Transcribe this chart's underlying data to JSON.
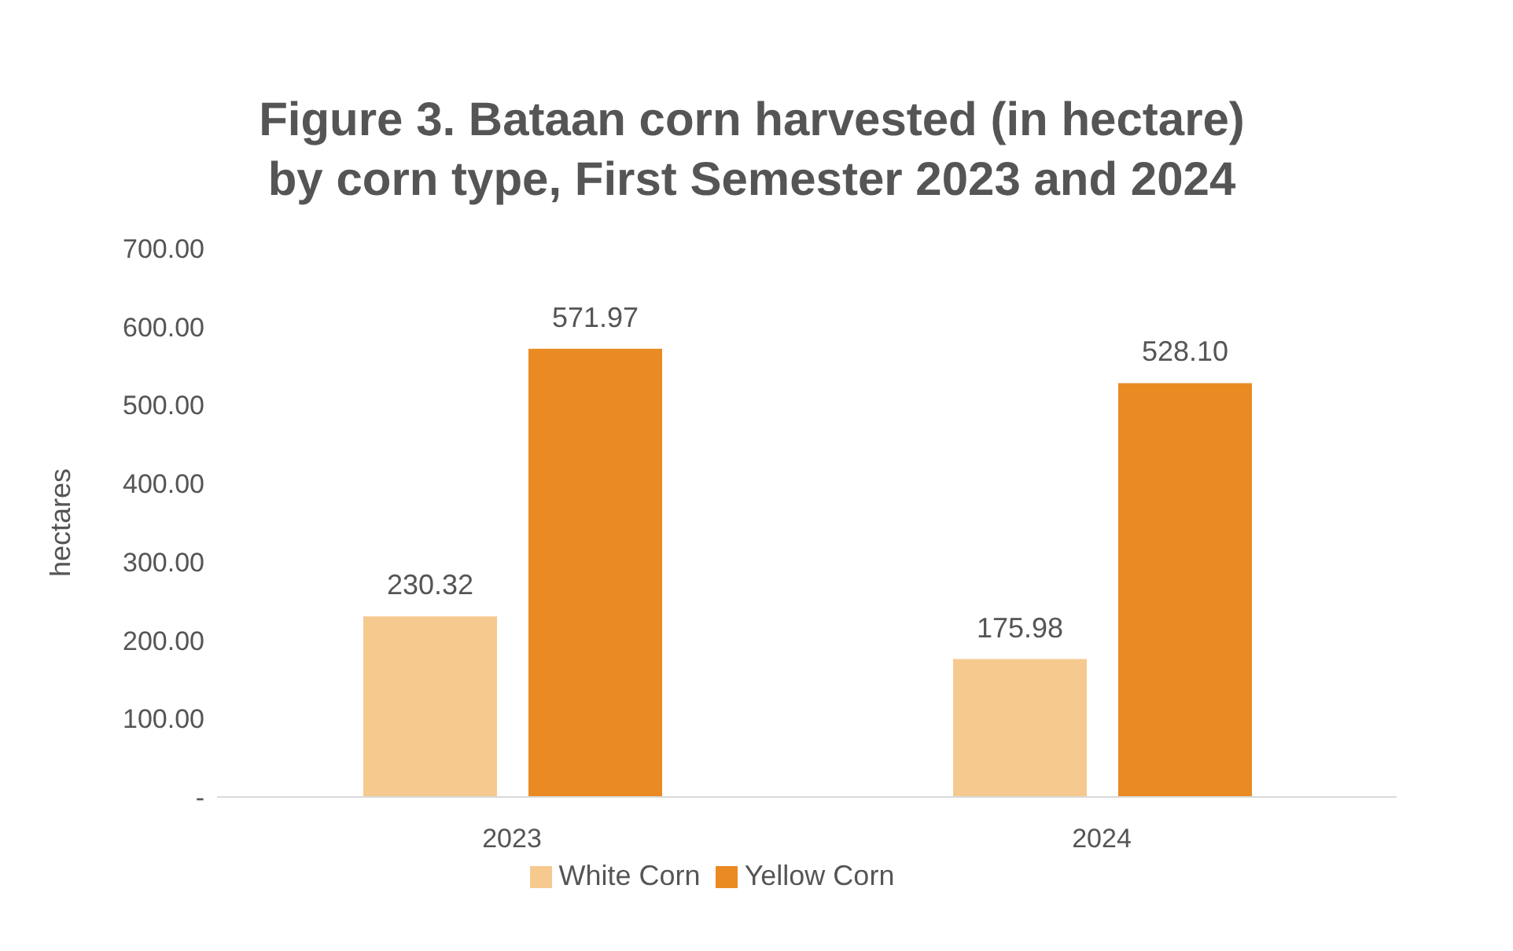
{
  "chart_data": {
    "type": "bar",
    "title": "Figure 3. Bataan corn harvested (in hectare)\nby corn type, First Semester 2023 and 2024",
    "ylabel": "hectares",
    "categories": [
      "2023",
      "2024"
    ],
    "series": [
      {
        "name": "White Corn",
        "color": "#f6c98f",
        "values": [
          230.32,
          175.98
        ],
        "value_labels": [
          "230.32",
          "175.98"
        ]
      },
      {
        "name": "Yellow Corn",
        "color": "#ea8a22",
        "values": [
          571.97,
          528.1
        ],
        "value_labels": [
          "571.97",
          "528.10"
        ]
      }
    ],
    "ylim": [
      0,
      700
    ],
    "yticks": [
      {
        "value": 0,
        "label": "-"
      },
      {
        "value": 100,
        "label": "100.00"
      },
      {
        "value": 200,
        "label": "200.00"
      },
      {
        "value": 300,
        "label": "300.00"
      },
      {
        "value": 400,
        "label": "400.00"
      },
      {
        "value": 500,
        "label": "500.00"
      },
      {
        "value": 600,
        "label": "600.00"
      },
      {
        "value": 700,
        "label": "700.00"
      }
    ],
    "grid": false,
    "legend": "bottom"
  }
}
